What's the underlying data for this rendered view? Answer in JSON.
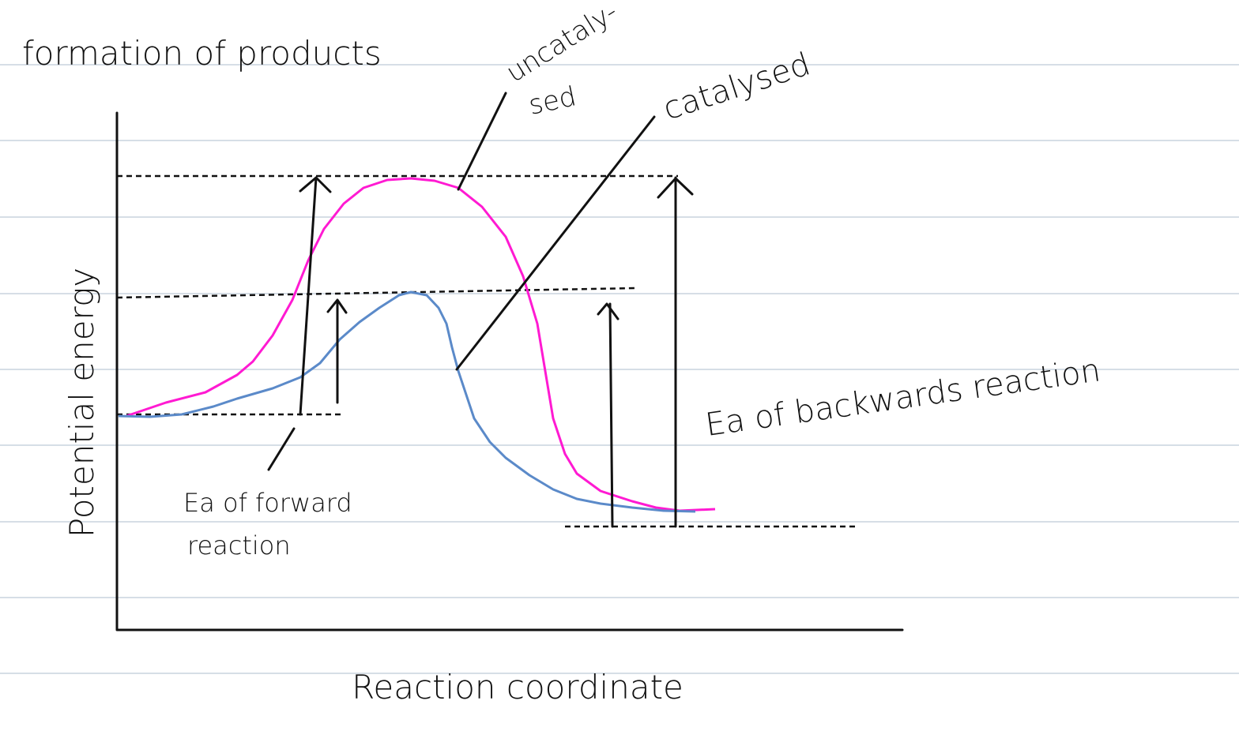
{
  "title": "formation of products",
  "labels": {
    "uncatalysed": [
      "uncataly-",
      "sed"
    ],
    "catalysed": "catalysed",
    "y_axis": "Potential energy",
    "x_axis": "Reaction coordinate",
    "forward": [
      "Ea of forward",
      "reaction"
    ],
    "backward": "Ea of backwards reaction"
  }
}
